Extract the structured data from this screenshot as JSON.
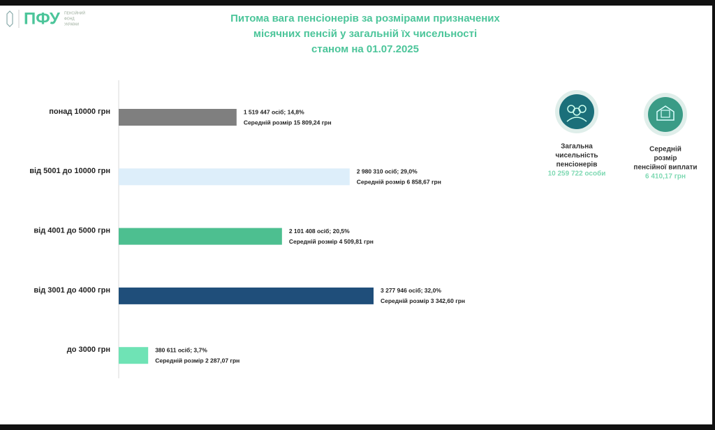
{
  "header": {
    "logo": "ПФУ",
    "logo_caption": [
      "ПЕНСІЙНИЙ",
      "ФОНД",
      "УКРАЇНИ"
    ]
  },
  "chart_data": {
    "type": "bar",
    "orientation": "horizontal",
    "title": [
      "Питома вага пенсіонерів за розмірами призначених",
      "місячних пенсій у загальній їх чисельності",
      "станом на 01.07.2025"
    ],
    "categories": [
      "понад 10000 грн",
      "від 5001 до 10000 грн",
      "від 4001 до 5000 грн",
      "від 3001 до 4000 грн",
      "до 3000 грн"
    ],
    "values": [
      14.8,
      29.0,
      20.5,
      32.0,
      3.7
    ],
    "value_labels": [
      "1 519 447 осіб;  14,8%",
      "2 980 310 осіб; 29,0%",
      "2 101 408 осіб; 20,5%",
      "3 277 946 осіб; 32,0%",
      "380 611 осіб; 3,7%"
    ],
    "notes": [
      "Середній розмір 15 809,24 грн",
      "Середній розмір 6 858,67 грн",
      "Середній розмір 4 509,81 грн",
      "Середній розмір 3 342,60 грн",
      "Середній розмір 2 287,07 грн"
    ],
    "colors": [
      "#7f7f7f",
      "#ddeefa",
      "#4dbf90",
      "#1f4e7a",
      "#6fe3b5"
    ]
  },
  "summary": [
    {
      "label": [
        "Загальна",
        "чисельність",
        "пенсіонерів"
      ],
      "value": "10 259 722 особи"
    },
    {
      "label": [
        "Середній",
        "розмір",
        "пенсійної виплати"
      ],
      "value": "6 410,17 грн"
    }
  ]
}
